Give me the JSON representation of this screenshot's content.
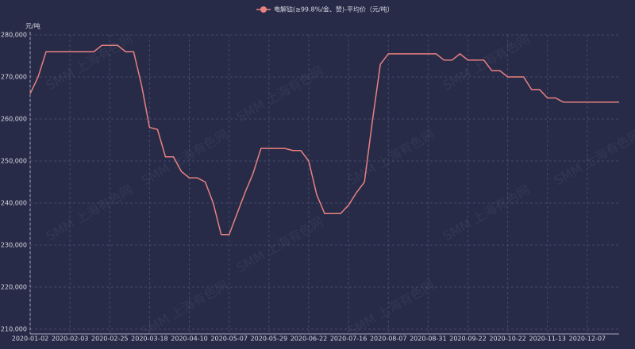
{
  "chart_data": {
    "type": "line",
    "legend": "电解钴(≥99.8%/金、赞)-平均价（元/吨）",
    "y_unit": "元/吨",
    "watermark": "SMM 上海有色网",
    "categories": [
      "2020-01-02",
      null,
      null,
      null,
      null,
      "2020-02-03",
      null,
      null,
      null,
      null,
      "2020-02-25",
      null,
      null,
      null,
      null,
      "2020-03-18",
      null,
      null,
      null,
      null,
      "2020-04-10",
      null,
      null,
      null,
      null,
      "2020-05-07",
      null,
      null,
      null,
      null,
      "2020-05-29",
      null,
      null,
      null,
      null,
      "2020-06-22",
      null,
      null,
      null,
      null,
      "2020-07-16",
      null,
      null,
      null,
      null,
      "2020-08-07",
      null,
      null,
      null,
      null,
      "2020-08-31",
      null,
      null,
      null,
      null,
      "2020-09-22",
      null,
      null,
      null,
      null,
      "2020-10-22",
      null,
      null,
      null,
      null,
      "2020-11-13",
      null,
      null,
      null,
      null,
      "2020-12-07",
      null,
      null,
      null,
      null
    ],
    "series": [
      {
        "name": "电解钴(≥99.8%/金、赞)-平均价（元/吨）",
        "color": "#e8817f",
        "values": [
          266000,
          270000,
          276000,
          276000,
          276000,
          276000,
          276000,
          276000,
          276000,
          277500,
          277500,
          277500,
          276000,
          276000,
          268000,
          258000,
          257500,
          251000,
          251000,
          247500,
          246000,
          246000,
          245000,
          240000,
          232500,
          232500,
          237500,
          242500,
          247000,
          253000,
          253000,
          253000,
          253000,
          252500,
          252500,
          250000,
          242000,
          237500,
          237500,
          237500,
          239500,
          242500,
          245000,
          259500,
          273000,
          275500,
          275500,
          275500,
          275500,
          275500,
          275500,
          275500,
          274000,
          274000,
          275500,
          274000,
          274000,
          274000,
          271500,
          271500,
          270000,
          270000,
          270000,
          267000,
          267000,
          265000,
          265000,
          264000,
          264000,
          264000,
          264000,
          264000,
          264000,
          264000,
          264000
        ]
      }
    ],
    "ylim": [
      210000,
      280000
    ],
    "yticks": [
      {
        "value": 210000,
        "label": "210,000"
      },
      {
        "value": 220000,
        "label": "220,000"
      },
      {
        "value": 230000,
        "label": "230,000"
      },
      {
        "value": 240000,
        "label": "240,000"
      },
      {
        "value": 250000,
        "label": "250,000"
      },
      {
        "value": 260000,
        "label": "260,000"
      },
      {
        "value": 270000,
        "label": "270,000"
      },
      {
        "value": 280000,
        "label": "280,000"
      }
    ],
    "grid": true
  }
}
